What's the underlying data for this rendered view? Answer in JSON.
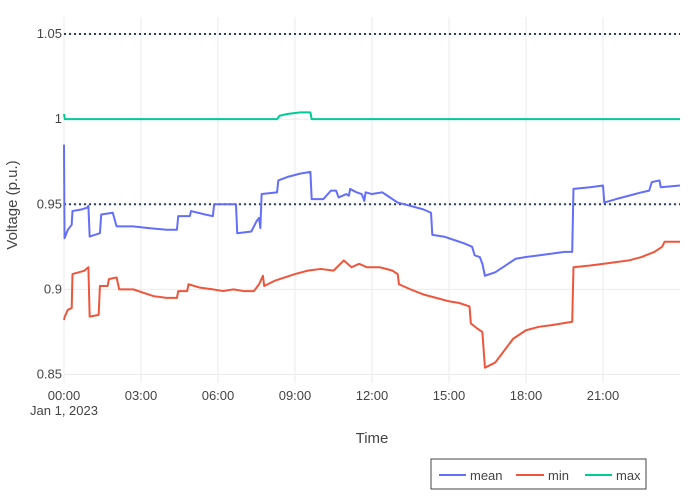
{
  "chart_data": {
    "type": "line",
    "title": "",
    "xlabel": "Time",
    "ylabel": "Voltage (p.u.)",
    "x_unit": "hours since 00:00, Jan 1, 2023",
    "xlim": [
      0,
      24
    ],
    "ylim": [
      0.845,
      1.06
    ],
    "x_ticks": [
      {
        "value": 0,
        "label": "00:00",
        "sublabel": "Jan 1, 2023"
      },
      {
        "value": 3,
        "label": "03:00"
      },
      {
        "value": 6,
        "label": "06:00"
      },
      {
        "value": 9,
        "label": "09:00"
      },
      {
        "value": 12,
        "label": "12:00"
      },
      {
        "value": 15,
        "label": "15:00"
      },
      {
        "value": 18,
        "label": "18:00"
      },
      {
        "value": 21,
        "label": "21:00"
      }
    ],
    "y_ticks": [
      {
        "value": 0.85,
        "label": "0.85"
      },
      {
        "value": 0.9,
        "label": "0.9"
      },
      {
        "value": 0.95,
        "label": "0.95"
      },
      {
        "value": 1.0,
        "label": "1"
      },
      {
        "value": 1.05,
        "label": "1.05"
      }
    ],
    "reference_lines": [
      {
        "y": 1.05,
        "style": "dotted",
        "color": "#2a3f5f"
      },
      {
        "y": 0.95,
        "style": "dotted",
        "color": "#2a3f5f"
      }
    ],
    "grid": true,
    "legend_position": "bottom-right",
    "series": [
      {
        "name": "mean",
        "color": "#636efa",
        "points": [
          [
            0.0,
            0.985
          ],
          [
            0.02,
            0.93
          ],
          [
            0.15,
            0.935
          ],
          [
            0.3,
            0.938
          ],
          [
            0.33,
            0.946
          ],
          [
            0.7,
            0.947
          ],
          [
            0.9,
            0.948
          ],
          [
            0.95,
            0.949
          ],
          [
            1.0,
            0.931
          ],
          [
            1.4,
            0.933
          ],
          [
            1.45,
            0.944
          ],
          [
            1.9,
            0.945
          ],
          [
            2.05,
            0.937
          ],
          [
            2.7,
            0.937
          ],
          [
            3.3,
            0.936
          ],
          [
            4.0,
            0.935
          ],
          [
            4.4,
            0.935
          ],
          [
            4.45,
            0.943
          ],
          [
            4.9,
            0.943
          ],
          [
            4.95,
            0.946
          ],
          [
            5.5,
            0.944
          ],
          [
            5.8,
            0.943
          ],
          [
            5.85,
            0.95
          ],
          [
            6.5,
            0.95
          ],
          [
            6.7,
            0.95
          ],
          [
            6.75,
            0.933
          ],
          [
            7.3,
            0.934
          ],
          [
            7.5,
            0.94
          ],
          [
            7.6,
            0.942
          ],
          [
            7.65,
            0.936
          ],
          [
            7.7,
            0.956
          ],
          [
            8.3,
            0.957
          ],
          [
            8.35,
            0.964
          ],
          [
            8.7,
            0.966
          ],
          [
            9.2,
            0.968
          ],
          [
            9.6,
            0.969
          ],
          [
            9.65,
            0.953
          ],
          [
            10.1,
            0.953
          ],
          [
            10.4,
            0.958
          ],
          [
            10.6,
            0.958
          ],
          [
            10.7,
            0.954
          ],
          [
            11.0,
            0.956
          ],
          [
            11.1,
            0.955
          ],
          [
            11.15,
            0.959
          ],
          [
            11.4,
            0.957
          ],
          [
            11.6,
            0.956
          ],
          [
            11.7,
            0.952
          ],
          [
            11.75,
            0.957
          ],
          [
            12.0,
            0.956
          ],
          [
            12.4,
            0.957
          ],
          [
            12.6,
            0.955
          ],
          [
            13.0,
            0.951
          ],
          [
            13.5,
            0.949
          ],
          [
            14.0,
            0.947
          ],
          [
            14.3,
            0.945
          ],
          [
            14.35,
            0.932
          ],
          [
            14.8,
            0.931
          ],
          [
            15.2,
            0.929
          ],
          [
            15.6,
            0.927
          ],
          [
            15.9,
            0.925
          ],
          [
            16.0,
            0.92
          ],
          [
            16.2,
            0.919
          ],
          [
            16.3,
            0.915
          ],
          [
            16.4,
            0.908
          ],
          [
            16.8,
            0.91
          ],
          [
            17.2,
            0.914
          ],
          [
            17.6,
            0.918
          ],
          [
            18.0,
            0.919
          ],
          [
            18.5,
            0.92
          ],
          [
            19.0,
            0.921
          ],
          [
            19.5,
            0.922
          ],
          [
            19.8,
            0.922
          ],
          [
            19.85,
            0.959
          ],
          [
            20.5,
            0.96
          ],
          [
            21.0,
            0.961
          ],
          [
            21.05,
            0.951
          ],
          [
            21.5,
            0.953
          ],
          [
            22.0,
            0.955
          ],
          [
            22.5,
            0.957
          ],
          [
            22.8,
            0.958
          ],
          [
            22.9,
            0.963
          ],
          [
            23.2,
            0.964
          ],
          [
            23.25,
            0.96
          ],
          [
            24.0,
            0.961
          ]
        ]
      },
      {
        "name": "min",
        "color": "#ef553b",
        "points": [
          [
            0.0,
            0.882
          ],
          [
            0.03,
            0.884
          ],
          [
            0.15,
            0.888
          ],
          [
            0.3,
            0.889
          ],
          [
            0.33,
            0.909
          ],
          [
            0.8,
            0.911
          ],
          [
            0.95,
            0.913
          ],
          [
            1.0,
            0.884
          ],
          [
            1.35,
            0.885
          ],
          [
            1.4,
            0.902
          ],
          [
            1.7,
            0.902
          ],
          [
            1.75,
            0.906
          ],
          [
            2.05,
            0.907
          ],
          [
            2.15,
            0.9
          ],
          [
            2.7,
            0.9
          ],
          [
            3.1,
            0.898
          ],
          [
            3.5,
            0.896
          ],
          [
            4.0,
            0.895
          ],
          [
            4.4,
            0.895
          ],
          [
            4.45,
            0.899
          ],
          [
            4.8,
            0.899
          ],
          [
            4.85,
            0.903
          ],
          [
            5.3,
            0.901
          ],
          [
            5.8,
            0.9
          ],
          [
            6.2,
            0.899
          ],
          [
            6.6,
            0.9
          ],
          [
            7.0,
            0.899
          ],
          [
            7.4,
            0.899
          ],
          [
            7.6,
            0.903
          ],
          [
            7.75,
            0.908
          ],
          [
            7.8,
            0.902
          ],
          [
            8.2,
            0.905
          ],
          [
            8.6,
            0.907
          ],
          [
            9.0,
            0.909
          ],
          [
            9.5,
            0.911
          ],
          [
            10.0,
            0.912
          ],
          [
            10.5,
            0.911
          ],
          [
            10.7,
            0.914
          ],
          [
            10.9,
            0.917
          ],
          [
            11.2,
            0.913
          ],
          [
            11.5,
            0.915
          ],
          [
            11.8,
            0.913
          ],
          [
            12.3,
            0.913
          ],
          [
            12.8,
            0.911
          ],
          [
            13.0,
            0.909
          ],
          [
            13.05,
            0.903
          ],
          [
            13.5,
            0.9
          ],
          [
            14.0,
            0.897
          ],
          [
            14.5,
            0.895
          ],
          [
            15.0,
            0.893
          ],
          [
            15.4,
            0.892
          ],
          [
            15.8,
            0.89
          ],
          [
            15.85,
            0.88
          ],
          [
            16.1,
            0.877
          ],
          [
            16.3,
            0.875
          ],
          [
            16.4,
            0.854
          ],
          [
            16.8,
            0.857
          ],
          [
            17.1,
            0.863
          ],
          [
            17.5,
            0.871
          ],
          [
            18.0,
            0.876
          ],
          [
            18.5,
            0.878
          ],
          [
            19.0,
            0.879
          ],
          [
            19.8,
            0.881
          ],
          [
            19.85,
            0.913
          ],
          [
            20.5,
            0.914
          ],
          [
            21.0,
            0.915
          ],
          [
            21.5,
            0.916
          ],
          [
            22.0,
            0.917
          ],
          [
            22.5,
            0.919
          ],
          [
            23.0,
            0.922
          ],
          [
            23.3,
            0.925
          ],
          [
            23.4,
            0.928
          ],
          [
            24.0,
            0.928
          ]
        ]
      },
      {
        "name": "max",
        "color": "#00cc96",
        "points": [
          [
            0.0,
            1.003
          ],
          [
            0.03,
            1.0
          ],
          [
            8.3,
            1.0
          ],
          [
            8.4,
            1.002
          ],
          [
            8.7,
            1.003
          ],
          [
            9.2,
            1.004
          ],
          [
            9.6,
            1.004
          ],
          [
            9.65,
            1.0
          ],
          [
            24.0,
            1.0
          ]
        ]
      }
    ]
  }
}
